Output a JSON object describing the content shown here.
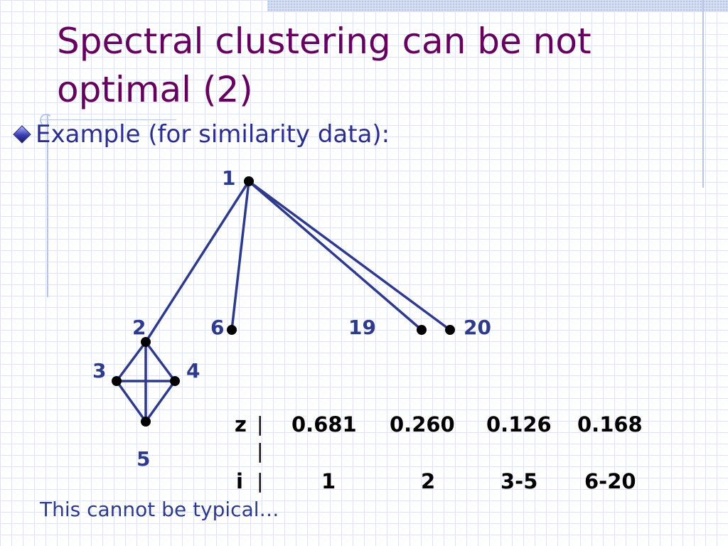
{
  "slide": {
    "title_line1": "Spectral clustering can be not",
    "title_line2": "optimal (2)",
    "bullet": "Example (for similarity data):",
    "footer": "This cannot be typical…"
  },
  "colors": {
    "title": "#66005f",
    "text": "#2e3a8a",
    "edge": "#2e3a8a",
    "node": "#000000"
  },
  "graph": {
    "nodes": [
      {
        "id": "1",
        "label": "1"
      },
      {
        "id": "2",
        "label": "2"
      },
      {
        "id": "3",
        "label": "3"
      },
      {
        "id": "4",
        "label": "4"
      },
      {
        "id": "5",
        "label": "5"
      },
      {
        "id": "6",
        "label": "6"
      },
      {
        "id": "19",
        "label": "19"
      },
      {
        "id": "20",
        "label": "20"
      }
    ],
    "edges": [
      [
        "1",
        "2"
      ],
      [
        "1",
        "6"
      ],
      [
        "1",
        "19"
      ],
      [
        "1",
        "20"
      ],
      [
        "2",
        "3"
      ],
      [
        "2",
        "4"
      ],
      [
        "2",
        "5"
      ],
      [
        "3",
        "4"
      ],
      [
        "3",
        "5"
      ],
      [
        "4",
        "5"
      ]
    ]
  },
  "table": {
    "z_label": "z",
    "i_label": "i",
    "separator": "|",
    "z_values": [
      "0.681",
      "0.260",
      "0.126",
      "0.168"
    ],
    "i_values": [
      "1",
      "2",
      "3-5",
      "6-20"
    ]
  }
}
